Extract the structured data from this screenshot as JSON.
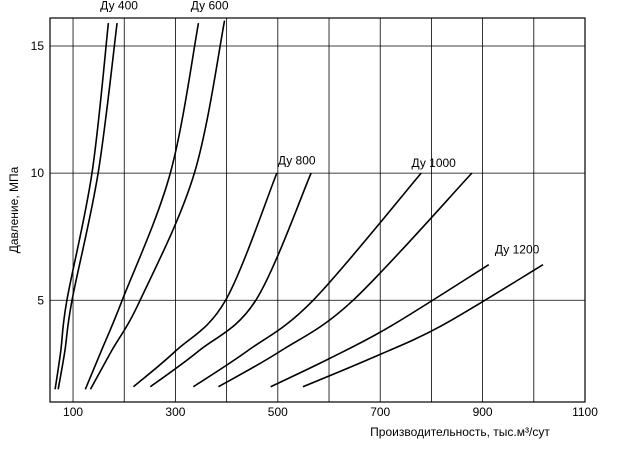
{
  "chart_data": {
    "type": "line",
    "ylabel": "Давление, МПа",
    "xlabel": "Производительность, тыс.м³/сут",
    "xlim": [
      55,
      1100
    ],
    "ylim": [
      1,
      16.1
    ],
    "xticks": [
      100,
      300,
      500,
      700,
      900,
      1100
    ],
    "xminor_grid": [
      200,
      400,
      600,
      800,
      1000
    ],
    "yticks": [
      5,
      10,
      15
    ],
    "grid": true,
    "color": "#000000",
    "series": [
      {
        "x": [
          65,
          76,
          88,
          137,
          169
        ],
        "values": [
          1.5,
          3,
          5,
          10,
          15.9
        ]
      },
      {
        "x": [
          71,
          84,
          98,
          149,
          186
        ],
        "values": [
          1.5,
          3,
          5,
          10,
          15.9
        ]
      },
      {
        "x": [
          124,
          155,
          196,
          290,
          345
        ],
        "values": [
          1.5,
          3,
          5,
          10,
          15.9
        ]
      },
      {
        "x": [
          134,
          175,
          231,
          337,
          396
        ],
        "values": [
          1.5,
          3,
          5,
          10,
          16.0
        ]
      },
      {
        "x": [
          218,
          300,
          398,
          498
        ],
        "values": [
          1.6,
          3,
          5,
          10
        ]
      },
      {
        "x": [
          251,
          345,
          457,
          565
        ],
        "values": [
          1.6,
          3,
          5,
          10
        ]
      },
      {
        "x": [
          335,
          440,
          569,
          780
        ],
        "values": [
          1.6,
          3,
          5,
          10
        ]
      },
      {
        "x": [
          384,
          505,
          647,
          879
        ],
        "values": [
          1.6,
          3,
          5,
          10
        ]
      },
      {
        "x": [
          486,
          600,
          722,
          912
        ],
        "values": [
          1.6,
          2.7,
          4,
          6.4
        ]
      },
      {
        "x": [
          549,
          680,
          820,
          1018
        ],
        "values": [
          1.6,
          2.7,
          4,
          6.4
        ]
      }
    ],
    "annotations": [
      {
        "text": "Ду 400",
        "x": 153,
        "y": 16.6
      },
      {
        "text": "Ду 600",
        "x": 330,
        "y": 16.6
      },
      {
        "text": "Ду 800",
        "x": 500,
        "y": 10.5
      },
      {
        "text": "Ду 1000",
        "x": 761,
        "y": 10.4
      },
      {
        "text": "Ду 1200",
        "x": 924,
        "y": 7.0
      }
    ]
  }
}
